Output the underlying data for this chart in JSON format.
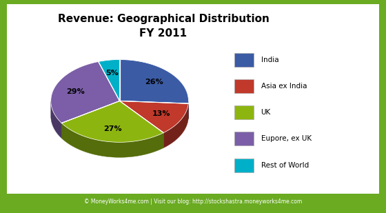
{
  "title": "Revenue: Geographical Distribution\nFY 2011",
  "slices": [
    26,
    13,
    27,
    29,
    5
  ],
  "labels": [
    "India",
    "Asia ex India",
    "UK",
    "Eupore, ex UK",
    "Rest of World"
  ],
  "colors": [
    "#3B5BA5",
    "#C0392B",
    "#8DB510",
    "#7B5EA7",
    "#00B0C8"
  ],
  "startangle": 90,
  "background_color": "#FFFFFF",
  "border_color": "#6AAB22",
  "footer": "© MoneyWorks4me.com | Visit our blog: http://stockshastra.moneyworks4me.com"
}
